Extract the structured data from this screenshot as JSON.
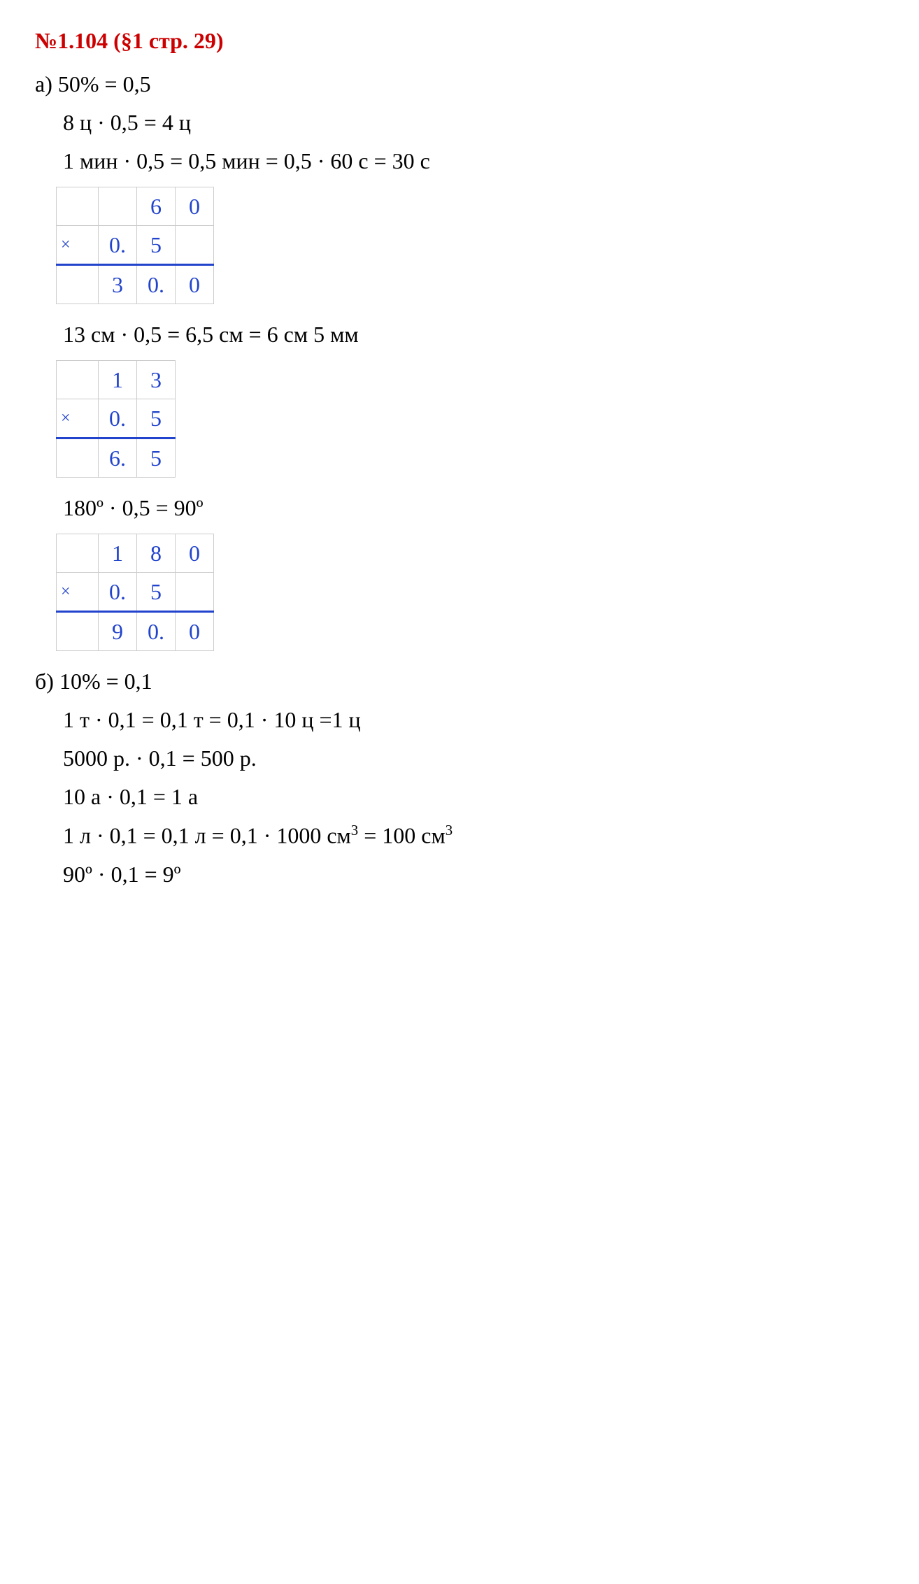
{
  "title": "№1.104 (§1 стр. 29)",
  "sectionA": {
    "label": "а)",
    "pct_line": "50% = 0,5",
    "lines": [
      "8 ц · 0,5 = 4 ц",
      "1 мин · 0,5 = 0,5 мин = 0,5 · 60 с = 30 с"
    ],
    "calc1": {
      "row1": [
        "",
        "",
        "6",
        "0"
      ],
      "row2": [
        "×",
        "0.",
        "5",
        ""
      ],
      "row3": [
        "",
        "3",
        "0.",
        "0"
      ]
    },
    "line_after_calc1": "13 см · 0,5 = 6,5 см = 6 см 5 мм",
    "calc2": {
      "row1": [
        "",
        "1",
        "3"
      ],
      "row2": [
        "×",
        "0.",
        "5"
      ],
      "row3": [
        "",
        "6.",
        "5"
      ]
    },
    "line_after_calc2": "180º · 0,5 = 90º",
    "calc3": {
      "row1": [
        "",
        "1",
        "8",
        "0"
      ],
      "row2": [
        "×",
        "0.",
        "5",
        ""
      ],
      "row3": [
        "",
        "9",
        "0.",
        "0"
      ]
    }
  },
  "sectionB": {
    "label": "б)",
    "pct_line": "10% = 0,1",
    "lines": [
      "1 т · 0,1 = 0,1 т = 0,1 · 10 ц =1 ц",
      "5000 р. · 0,1 = 500 р.",
      "10 а · 0,1 = 1 а"
    ],
    "line_cube_prefix": "1 л · 0,1 = 0,1 л = 0,1 · 1000 см",
    "cube_sup1": "3",
    "line_cube_mid": " = 100 см",
    "cube_sup2": "3",
    "line_last": "90º · 0,1 = 9º"
  },
  "colors": {
    "title_color": "#cc0000",
    "cell_border": "#cccccc",
    "digit_color": "#2244cc",
    "result_border": "#2244cc",
    "text_color": "#000000",
    "background": "#ffffff"
  },
  "typography": {
    "base_fontsize": 32,
    "font_family": "Times New Roman, serif",
    "title_weight": "bold"
  }
}
